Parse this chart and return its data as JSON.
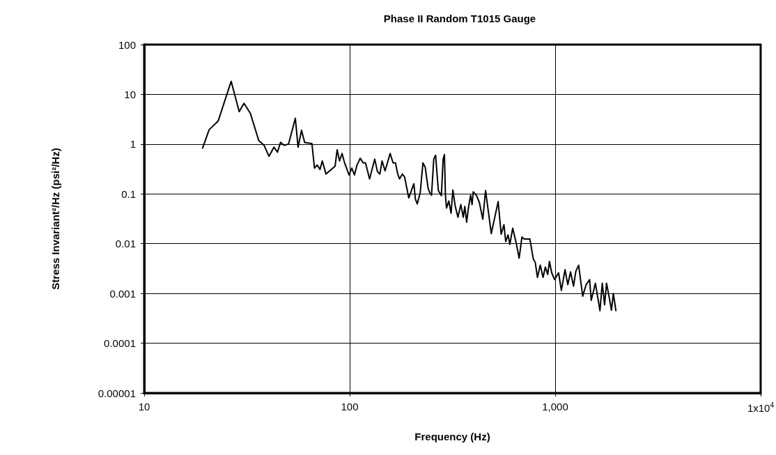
{
  "chart_data": {
    "type": "line",
    "title": "Phase II Random T1015 Gauge",
    "xlabel": "Frequency (Hz)",
    "ylabel": "Stress Invariant²/Hz (psi²/Hz)",
    "log": "xy",
    "grid": true,
    "marker": "none",
    "line_style": "solid",
    "xlim": [
      10,
      10000
    ],
    "xticks": [
      10,
      100,
      {
        "value": 1000,
        "label": "1,000"
      },
      {
        "value": 10000,
        "label": "1x10$^{4}$"
      }
    ],
    "ylim": [
      1e-05,
      100
    ],
    "yticks": [
      {
        "value": 1e-05,
        "label": "0.00001"
      },
      0.0001,
      0.001,
      0.01,
      0.1,
      1,
      10,
      100
    ],
    "x": [
      19.2,
      20.7,
      22.9,
      26.5,
      29.0,
      30.6,
      32.9,
      36.1,
      38.3,
      40.5,
      42.8,
      44.5,
      46.1,
      47.9,
      50.4,
      54.4,
      56.1,
      58.3,
      60.4,
      65.5,
      67.4,
      69.5,
      71.7,
      73.6,
      76.7,
      84.9,
      86.9,
      89.3,
      91.8,
      94.3,
      99.3,
      102.4,
      105.5,
      108.3,
      112.5,
      116.4,
      119.4,
      125,
      132.4,
      136.5,
      140.2,
      143.8,
      148.7,
      157.4,
      162.6,
      167,
      171.4,
      174.9,
      180.5,
      185,
      193.9,
      205.3,
      208.9,
      213.3,
      220.4,
      227.3,
      233.3,
      240.8,
      245.5,
      250.2,
      256.6,
      261.9,
      270.1,
      279.3,
      285,
      289.2,
      292.4,
      296,
      303.7,
      311.5,
      317.8,
      326,
      336.4,
      347.5,
      357.1,
      363.3,
      370.9,
      377.7,
      387.6,
      394.1,
      399.2,
      413.3,
      427.5,
      444.4,
      458.5,
      488.7,
      528,
      546,
      563.4,
      574.6,
      590,
      602,
      621.6,
      646,
      668,
      689,
      706,
      753,
      783,
      800,
      820,
      846,
      873,
      896,
      920,
      938,
      962,
      993,
      1039,
      1072,
      1117,
      1152,
      1188,
      1229,
      1261,
      1301,
      1362,
      1415,
      1471,
      1498,
      1570,
      1652,
      1695,
      1740,
      1778,
      1833,
      1879,
      1919,
      1977
    ],
    "series": [
      {
        "color": "#000000",
        "values": [
          0.81,
          1.95,
          2.9,
          18.3,
          4.5,
          6.6,
          4.1,
          1.18,
          0.95,
          0.57,
          0.87,
          0.69,
          1.09,
          0.95,
          1.0,
          3.3,
          0.87,
          1.9,
          1.08,
          1.03,
          0.33,
          0.38,
          0.31,
          0.46,
          0.25,
          0.36,
          0.77,
          0.46,
          0.65,
          0.43,
          0.24,
          0.33,
          0.24,
          0.37,
          0.52,
          0.42,
          0.42,
          0.2,
          0.5,
          0.28,
          0.25,
          0.46,
          0.29,
          0.65,
          0.42,
          0.42,
          0.25,
          0.2,
          0.25,
          0.22,
          0.083,
          0.16,
          0.078,
          0.063,
          0.105,
          0.42,
          0.34,
          0.13,
          0.105,
          0.094,
          0.5,
          0.6,
          0.117,
          0.092,
          0.5,
          0.62,
          0.094,
          0.052,
          0.072,
          0.041,
          0.12,
          0.058,
          0.034,
          0.061,
          0.034,
          0.056,
          0.027,
          0.05,
          0.094,
          0.061,
          0.11,
          0.094,
          0.068,
          0.031,
          0.117,
          0.016,
          0.07,
          0.0155,
          0.024,
          0.011,
          0.015,
          0.0097,
          0.0205,
          0.0104,
          0.0051,
          0.0136,
          0.0124,
          0.0124,
          0.0049,
          0.0042,
          0.0021,
          0.0037,
          0.0021,
          0.0034,
          0.0024,
          0.0044,
          0.0026,
          0.0019,
          0.0026,
          0.00115,
          0.003,
          0.0015,
          0.0027,
          0.0014,
          0.0028,
          0.0037,
          0.00088,
          0.0015,
          0.0019,
          0.00073,
          0.0016,
          0.00045,
          0.0016,
          0.00059,
          0.0016,
          0.00083,
          0.00046,
          0.001,
          0.00044
        ]
      }
    ]
  }
}
